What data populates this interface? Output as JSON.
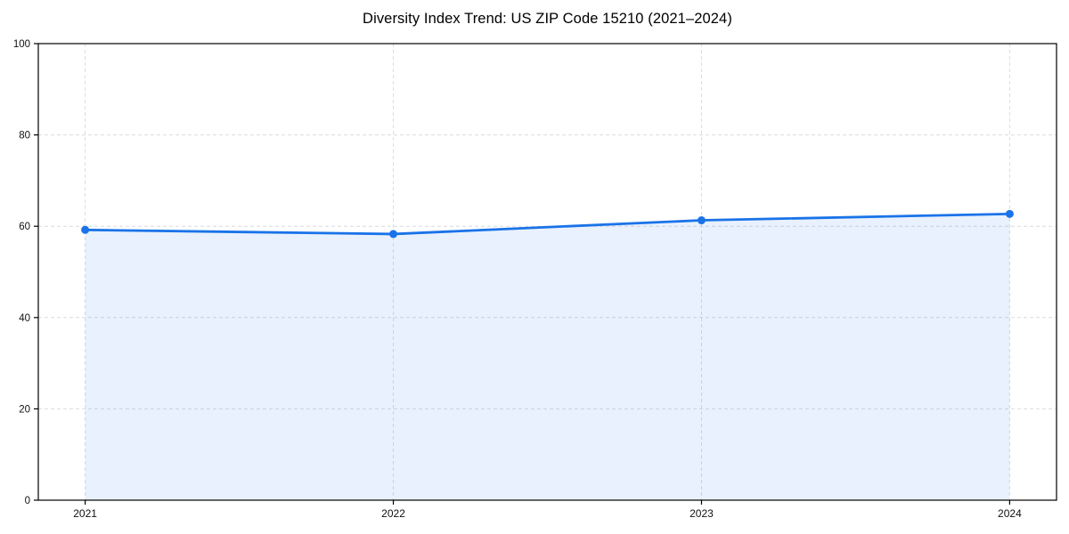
{
  "chart_data": {
    "type": "area",
    "title": "Diversity Index Trend: US ZIP Code 15210 (2021–2024)",
    "x": [
      "2021",
      "2022",
      "2023",
      "2024"
    ],
    "series": [
      {
        "name": "Diversity Index",
        "values": [
          59.2,
          58.3,
          61.3,
          62.7
        ]
      }
    ],
    "xlabel": "",
    "ylabel": "",
    "ylim": [
      0,
      100
    ],
    "yticks": [
      0,
      20,
      40,
      60,
      80,
      100
    ],
    "grid": true,
    "grid_style": "dashed",
    "legend_position": "none",
    "colors": {
      "line": "#1a73e8",
      "fill": "rgba(26,115,232,0.10)",
      "grid": "#dcdcdc",
      "axis": "#000000",
      "tick_label": "#111111",
      "background": "#ffffff"
    },
    "marker": "circle"
  }
}
